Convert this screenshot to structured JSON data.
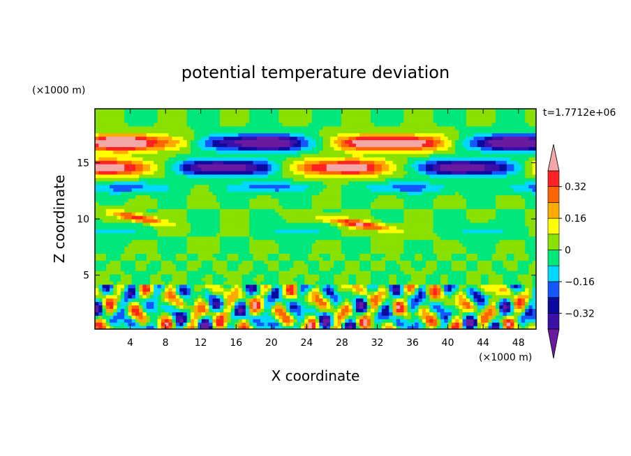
{
  "chart_data": {
    "type": "heatmap",
    "title": "potential temperature deviation",
    "xlabel": "X coordinate",
    "ylabel": "Z coordinate",
    "x_unit": "(×1000 m)",
    "y_unit": "(×1000 m)",
    "time_label": "t=1.7712e+06",
    "xlim": [
      0,
      50
    ],
    "ylim": [
      0.2,
      19.8
    ],
    "x_ticks": [
      4,
      8,
      12,
      16,
      20,
      24,
      28,
      32,
      36,
      40,
      44,
      48
    ],
    "y_ticks": [
      5,
      10,
      15
    ],
    "colorbar": {
      "levels": [
        -0.4,
        -0.32,
        -0.24,
        -0.16,
        -0.08,
        0,
        0.08,
        0.16,
        0.24,
        0.32,
        0.4
      ],
      "labeled": [
        0.32,
        0.16,
        0,
        -0.16,
        -0.32
      ],
      "colors": [
        "#5b0fa0",
        "#3c0fa8",
        "#0a0aa0",
        "#1456ff",
        "#00d8ff",
        "#00e87c",
        "#8ae000",
        "#ffff00",
        "#ffaa00",
        "#ff6600",
        "#ff2222",
        "#f5a6a6"
      ],
      "under_color": "#6a1aa0",
      "over_color": "#f5a6a6"
    },
    "bands": [
      {
        "z": 16.8,
        "pattern": "dipole",
        "desc": "upper alternating band"
      },
      {
        "z": 14.6,
        "pattern": "dipole",
        "desc": "second alternating band"
      },
      {
        "z": 9.5,
        "pattern": "streak",
        "desc": "tilted warm streaks"
      },
      {
        "z": 2.5,
        "pattern": "turbulent",
        "desc": "boundary layer eddies"
      }
    ]
  }
}
